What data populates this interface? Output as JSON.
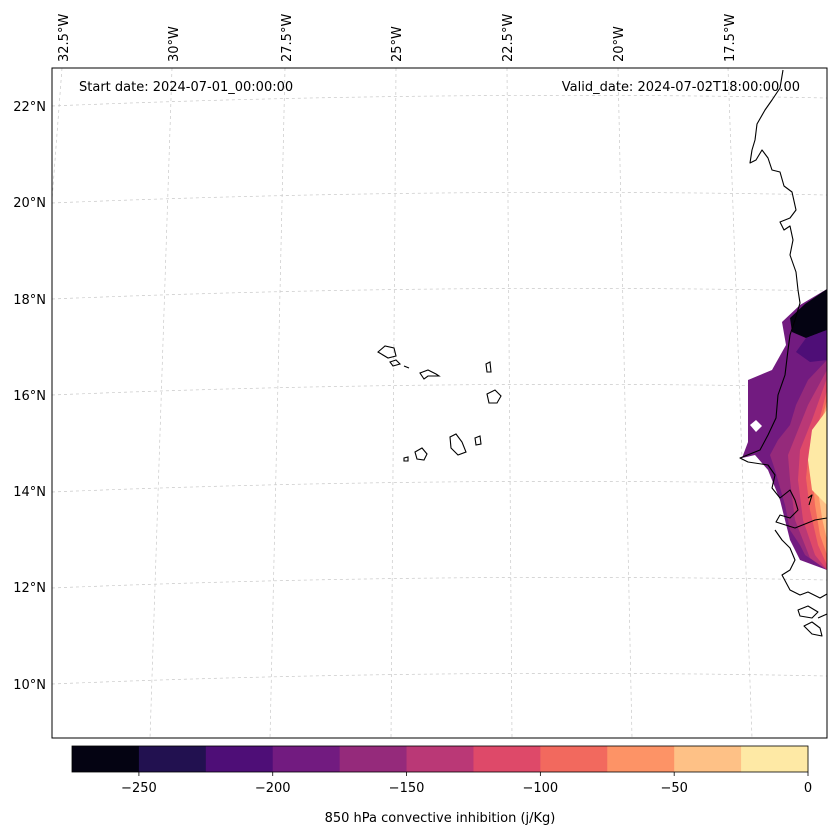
{
  "map": {
    "start_label": "Start date: 2024-07-01_00:00:00",
    "valid_label": "Valid_date: 2024-07-02T18:00:00.00",
    "lon_labels": [
      "32.5°W",
      "30°W",
      "27.5°W",
      "25°W",
      "22.5°W",
      "20°W",
      "17.5°W"
    ],
    "lat_labels": [
      "22°N",
      "20°N",
      "18°N",
      "16°N",
      "14°N",
      "12°N",
      "10°N"
    ]
  },
  "colorbar": {
    "label": "850 hPa convective inhibition (j/Kg)",
    "tick_labels": [
      "−250",
      "−200",
      "−150",
      "−100",
      "−50",
      "0"
    ],
    "range": [
      -275,
      0
    ],
    "colors": [
      "#040312",
      "#221150",
      "#4e0e77",
      "#721b80",
      "#952a7b",
      "#ba3876",
      "#de4969",
      "#f2695e",
      "#fd9366",
      "#fec186",
      "#fee9a5"
    ]
  },
  "colors": {
    "coastline": "#000000",
    "gridline": "#c8c8c8",
    "frame": "#000000"
  }
}
